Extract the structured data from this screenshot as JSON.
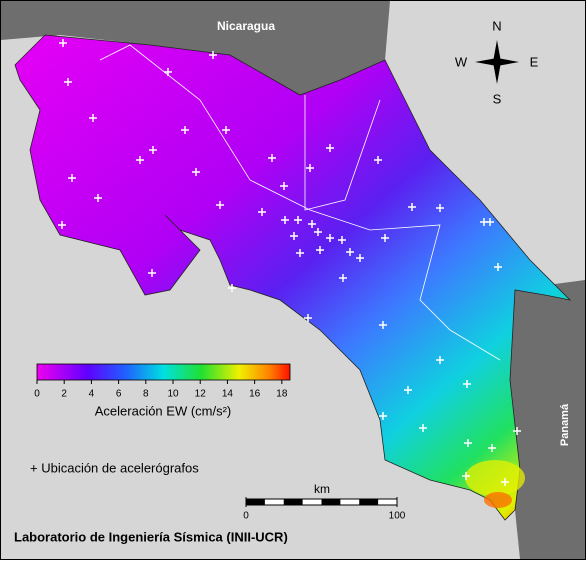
{
  "map": {
    "countries": {
      "north": "Nicaragua",
      "south": "Panamá"
    },
    "compass": {
      "n": "N",
      "s": "S",
      "w": "W",
      "e": "E"
    },
    "colorbar": {
      "label": "Aceleración EW (cm/s²)",
      "lim": [
        0,
        18.6
      ],
      "ticks": [
        0,
        2,
        4,
        6,
        8,
        10,
        12,
        14,
        16,
        18
      ]
    },
    "legend": "+ Ubicación de acelerógrafos",
    "scale": {
      "label": "km",
      "ticks": [
        0,
        100
      ]
    },
    "footer": "Laboratorio de Ingeniería Sísmica (INII-UCR)"
  }
}
